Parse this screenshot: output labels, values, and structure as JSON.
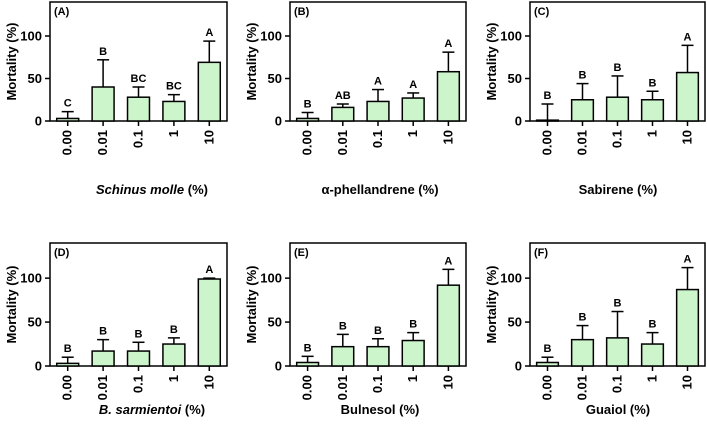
{
  "chart_data": [
    {
      "type": "bar",
      "panel_label": "(A)",
      "categories": [
        "0.00",
        "0.01",
        "0.1",
        "1",
        "10"
      ],
      "values": [
        3,
        40,
        28,
        23,
        69
      ],
      "errors": [
        8,
        32,
        12,
        8,
        25
      ],
      "letters": [
        "C",
        "B",
        "BC",
        "BC",
        "A"
      ],
      "xlabel_italic": "Schinus molle",
      "xlabel_rest": " (%)",
      "ylabel": "Mortality (%)",
      "ylim": [
        0,
        140
      ],
      "yticks": [
        "0",
        "50",
        "100"
      ],
      "bar_color": "#ccf5cc"
    },
    {
      "type": "bar",
      "panel_label": "(B)",
      "categories": [
        "0.00",
        "0.01",
        "0.1",
        "1",
        "10"
      ],
      "values": [
        3,
        16,
        23,
        27,
        58
      ],
      "errors": [
        7,
        4,
        14,
        6,
        23
      ],
      "letters": [
        "B",
        "AB",
        "A",
        "A",
        "A"
      ],
      "xlabel_italic": "",
      "xlabel_rest": "α-phellandrene (%)",
      "ylabel": "Mortality (%)",
      "ylim": [
        0,
        140
      ],
      "yticks": [
        "0",
        "50",
        "100"
      ],
      "bar_color": "#ccf5cc"
    },
    {
      "type": "bar",
      "panel_label": "(C)",
      "categories": [
        "0.00",
        "0.01",
        "0.1",
        "1",
        "10"
      ],
      "values": [
        1,
        25,
        28,
        25,
        57
      ],
      "errors": [
        19,
        19,
        25,
        10,
        32
      ],
      "letters": [
        "B",
        "B",
        "B",
        "B",
        "A"
      ],
      "xlabel_italic": "",
      "xlabel_rest": "Sabirene (%)",
      "ylabel": "Mortality (%)",
      "ylim": [
        0,
        140
      ],
      "yticks": [
        "0",
        "50",
        "100"
      ],
      "bar_color": "#ccf5cc"
    },
    {
      "type": "bar",
      "panel_label": "(D)",
      "categories": [
        "0.00",
        "0.01",
        "0.1",
        "1",
        "10"
      ],
      "values": [
        3,
        17,
        17,
        25,
        99
      ],
      "errors": [
        7,
        13,
        10,
        7,
        1
      ],
      "letters": [
        "B",
        "B",
        "B",
        "B",
        "A"
      ],
      "xlabel_italic": "B. sarmientoi",
      "xlabel_rest": " (%)",
      "ylabel": "Mortality (%)",
      "ylim": [
        0,
        140
      ],
      "yticks": [
        "0",
        "50",
        "100"
      ],
      "bar_color": "#ccf5cc"
    },
    {
      "type": "bar",
      "panel_label": "(E)",
      "categories": [
        "0.00",
        "0.01",
        "0.1",
        "1",
        "10"
      ],
      "values": [
        4,
        22,
        22,
        29,
        92
      ],
      "errors": [
        7,
        14,
        9,
        9,
        18
      ],
      "letters": [
        "B",
        "B",
        "B",
        "B",
        "A"
      ],
      "xlabel_italic": "",
      "xlabel_rest": "Bulnesol (%)",
      "ylabel": "Mortality (%)",
      "ylim": [
        0,
        140
      ],
      "yticks": [
        "0",
        "50",
        "100"
      ],
      "bar_color": "#ccf5cc"
    },
    {
      "type": "bar",
      "panel_label": "(F)",
      "categories": [
        "0.00",
        "0.01",
        "0.1",
        "1",
        "10"
      ],
      "values": [
        4,
        30,
        32,
        25,
        87
      ],
      "errors": [
        6,
        16,
        30,
        13,
        25
      ],
      "letters": [
        "B",
        "B",
        "B",
        "B",
        "A"
      ],
      "xlabel_italic": "",
      "xlabel_rest": "Guaiol (%)",
      "ylabel": "Mortality (%)",
      "ylim": [
        0,
        140
      ],
      "yticks": [
        "0",
        "50",
        "100"
      ],
      "bar_color": "#ccf5cc"
    }
  ]
}
